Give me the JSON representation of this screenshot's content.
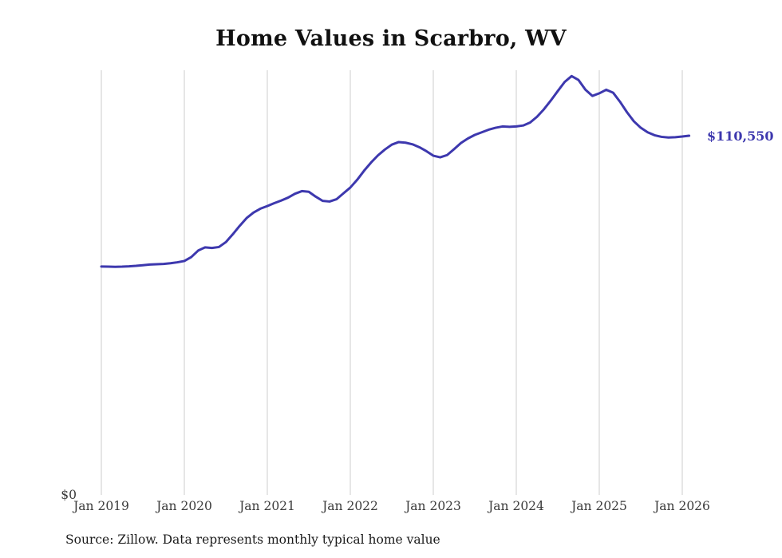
{
  "title": "Home Values in Scarbro, WV",
  "end_label": "$110,550",
  "y_axis_zero_label": "$0",
  "source": "Source: Zillow. Data represents monthly typical home value",
  "colors": {
    "line": "#3d38ae",
    "grid": "#cccccc",
    "end_label": "#3d38ae",
    "tick_text": "#3b3b3b",
    "title_text": "#111111"
  },
  "chart_data": {
    "type": "line",
    "title": "Home Values in Scarbro, WV",
    "xlabel": "",
    "ylabel": "",
    "ylim": [
      0,
      130700
    ],
    "grid": "vertical-only",
    "legend": "none",
    "frequency": "monthly",
    "x_start": "Jan 2019",
    "x_end": "Feb 2026",
    "x_tick_labels": [
      "Jan 2019",
      "Jan 2020",
      "Jan 2021",
      "Jan 2022",
      "Jan 2023",
      "Jan 2024",
      "Jan 2025",
      "Jan 2026"
    ],
    "end_annotation": "$110,550",
    "series": [
      {
        "name": "Typical home value",
        "values": [
          70300,
          70250,
          70200,
          70250,
          70350,
          70500,
          70700,
          70900,
          71000,
          71100,
          71300,
          71600,
          72000,
          73200,
          75200,
          76200,
          76000,
          76300,
          77800,
          80200,
          82800,
          85200,
          86900,
          88100,
          88900,
          89800,
          90600,
          91500,
          92700,
          93500,
          93300,
          91800,
          90500,
          90300,
          91000,
          92800,
          94600,
          97000,
          99800,
          102300,
          104500,
          106300,
          107800,
          108600,
          108400,
          107900,
          107000,
          105800,
          104400,
          103900,
          104600,
          106400,
          108300,
          109700,
          110800,
          111600,
          112400,
          113000,
          113400,
          113300,
          113400,
          113700,
          114600,
          116400,
          118700,
          121400,
          124300,
          127100,
          128900,
          127700,
          124700,
          122800,
          123600,
          124700,
          123800,
          121000,
          117800,
          115000,
          113000,
          111600,
          110700,
          110200,
          110000,
          110100,
          110300,
          110550
        ]
      }
    ]
  }
}
